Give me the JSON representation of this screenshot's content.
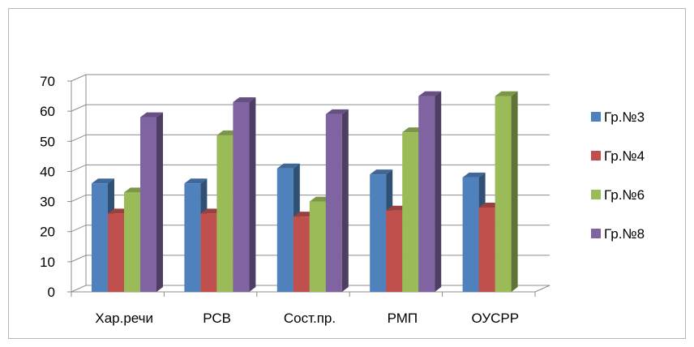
{
  "chart_data": {
    "type": "bar",
    "title": "",
    "xlabel": "",
    "ylabel": "",
    "categories": [
      "Хар.речи",
      "РСВ",
      "Сост.пр.",
      "РМП",
      "ОУСРР"
    ],
    "series": [
      {
        "name": "Гр.№3",
        "color": "#4f81bd",
        "values": [
          36,
          36,
          41,
          39,
          38
        ]
      },
      {
        "name": "Гр.№4",
        "color": "#c0504d",
        "values": [
          26,
          26,
          25,
          27,
          28
        ]
      },
      {
        "name": "Гр.№6",
        "color": "#9bbb59",
        "values": [
          33,
          52,
          30,
          53,
          65
        ]
      },
      {
        "name": "Гр.№8",
        "color": "#8064a2",
        "values": [
          58,
          63,
          59,
          65,
          null
        ]
      }
    ],
    "ylim": [
      0,
      70
    ],
    "yticks": [
      0,
      10,
      20,
      30,
      40,
      50,
      60,
      70
    ],
    "grid": true,
    "legend_position": "right",
    "style": "3d-clustered-column"
  }
}
